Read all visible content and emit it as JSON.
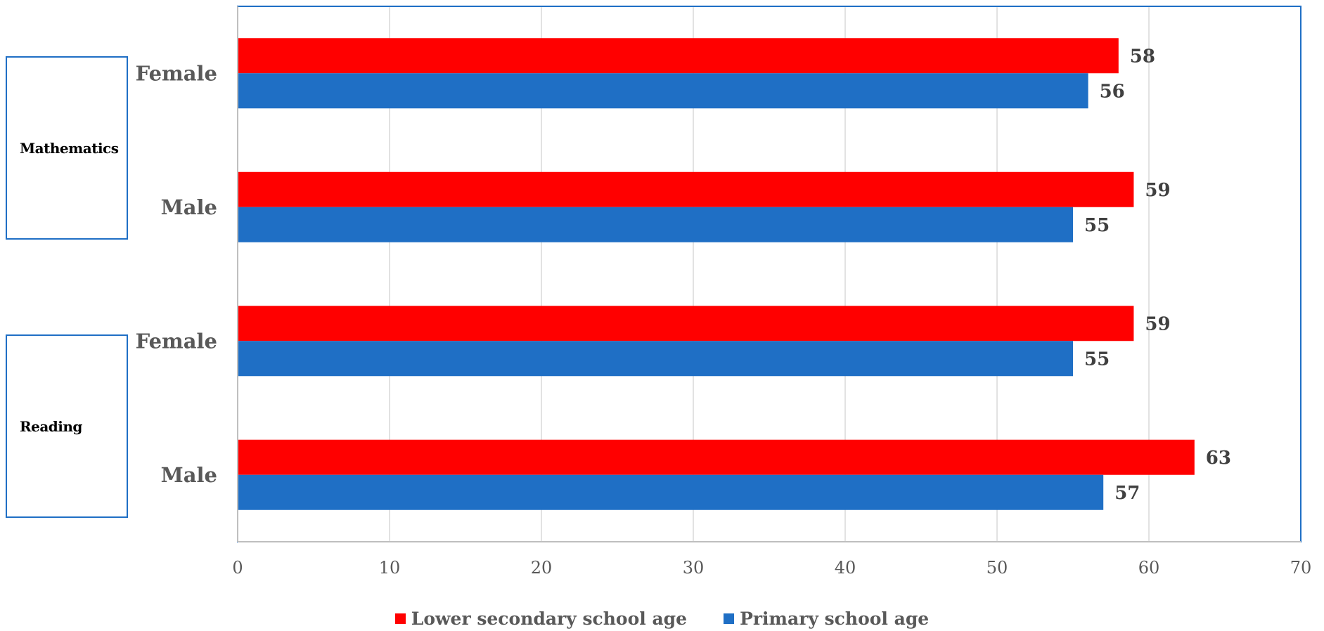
{
  "chart_data": {
    "type": "bar",
    "orientation": "horizontal",
    "groups": [
      "Mathematics",
      "Reading"
    ],
    "categories": [
      "Female",
      "Male",
      "Female",
      "Male"
    ],
    "category_groups": [
      "Mathematics",
      "Mathematics",
      "Reading",
      "Reading"
    ],
    "series": [
      {
        "name": "Lower secondary school age",
        "color": "#ff0000",
        "values": [
          58,
          59,
          59,
          63
        ]
      },
      {
        "name": "Primary school age",
        "color": "#1f6fc5",
        "values": [
          56,
          55,
          55,
          57
        ]
      }
    ],
    "xlim": [
      0,
      70
    ],
    "xticks": [
      "0",
      "10",
      "20",
      "30",
      "40",
      "50",
      "60",
      "70"
    ],
    "grid": true,
    "legend_position": "bottom",
    "data_labels": true
  }
}
